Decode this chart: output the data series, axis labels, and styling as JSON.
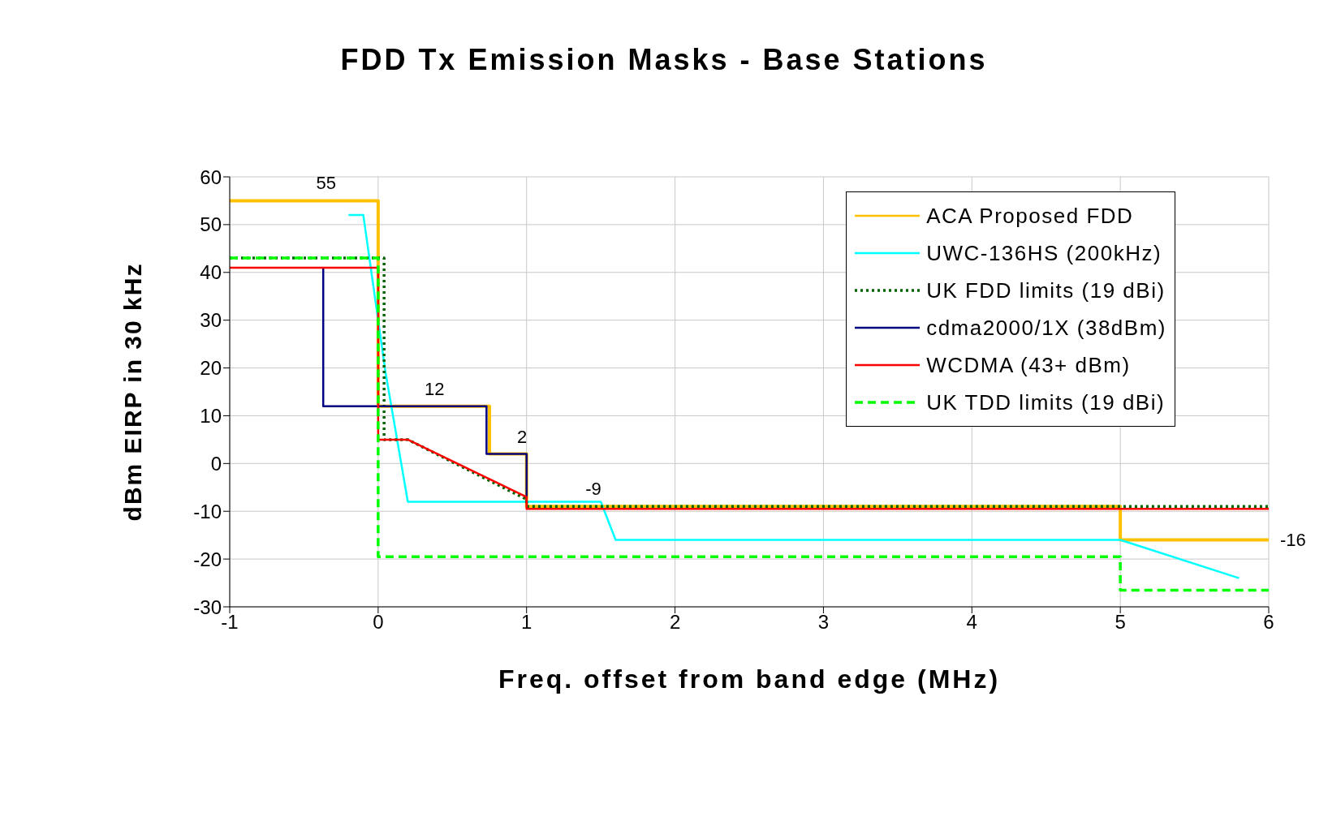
{
  "chart_data": {
    "type": "line",
    "title": "FDD Tx Emission Masks - Base Stations",
    "xlabel": "Freq. offset from band edge   (MHz)",
    "ylabel": "dBm EIRP in 30 kHz",
    "xlim": [
      -1,
      6
    ],
    "xticks": [
      -1,
      0,
      1,
      2,
      3,
      4,
      5,
      6
    ],
    "ylim": [
      -30,
      60
    ],
    "yticks": [
      -30,
      -20,
      -10,
      0,
      10,
      20,
      30,
      40,
      50,
      60
    ],
    "grid": true,
    "legend": "top right",
    "marker": "none",
    "series": [
      {
        "name": "ACA Proposed FDD",
        "color": "#ffc000",
        "line_style": "solid",
        "x": [
          -1,
          0,
          0,
          0.75,
          0.75,
          1,
          1,
          5,
          5,
          6
        ],
        "values": [
          55,
          55,
          12,
          12,
          2,
          2,
          -9,
          -9,
          -16,
          -16
        ]
      },
      {
        "name": "UWC-136HS (200kHz)",
        "color": "#00ffff",
        "line_style": "solid",
        "x": [
          -0.2,
          -0.1,
          0.05,
          0.2,
          1.5,
          1.6,
          5,
          5.8
        ],
        "values": [
          52,
          52,
          19,
          -8,
          -8,
          -16,
          -16,
          -24
        ]
      },
      {
        "name": "UK FDD limits (19 dBi)",
        "color": "#006400",
        "line_style": "dotted",
        "x": [
          -1,
          0.04,
          0.04,
          0.2,
          1,
          1,
          6
        ],
        "values": [
          43,
          43,
          5,
          5,
          -7.5,
          -9,
          -9
        ]
      },
      {
        "name": "cdma2000/1X (38dBm)",
        "color": "#000080",
        "line_style": "solid",
        "x": [
          -0.37,
          -0.37,
          0.73,
          0.73,
          1,
          1
        ],
        "values": [
          41,
          12,
          12,
          2,
          2,
          -8
        ]
      },
      {
        "name": "WCDMA (43+ dBm)",
        "color": "#ff0000",
        "line_style": "solid",
        "x": [
          -1,
          0,
          0,
          0.2,
          1,
          1,
          6
        ],
        "values": [
          41,
          41,
          5,
          5,
          -7,
          -9.5,
          -9.5
        ]
      },
      {
        "name": "UK TDD limits (19 dBi)",
        "color": "#00ff00",
        "line_style": "dashed",
        "x": [
          -1,
          0,
          0,
          5,
          5,
          6
        ],
        "values": [
          43,
          43,
          -19.5,
          -19.5,
          -26.5,
          -26.5
        ]
      }
    ],
    "annotations": [
      {
        "text": "55",
        "x": -0.35,
        "y": 55
      },
      {
        "text": "12",
        "x": 0.38,
        "y": 12
      },
      {
        "text": "2",
        "x": 0.97,
        "y": 2
      },
      {
        "text": "-9",
        "x": 1.45,
        "y": -9
      },
      {
        "text": "-16",
        "x": 6,
        "y": -16
      }
    ]
  }
}
